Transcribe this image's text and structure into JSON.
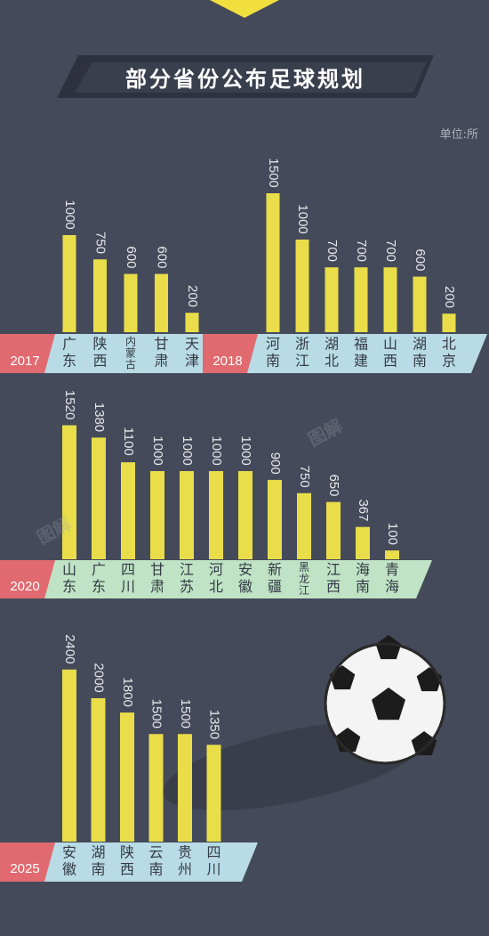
{
  "title": "部分省份公布足球规划",
  "unit": "单位:所",
  "colors": {
    "background": "#454a5a",
    "bar": "#e9de4a",
    "year_tag": "#e06a6f",
    "band_blue": "#b8dbe6",
    "band_green": "#bfe3c4"
  },
  "watermark": "图解",
  "chart_data": [
    {
      "type": "bar",
      "year": "2017",
      "categories": [
        "广东",
        "陕西",
        "内蒙古",
        "甘肃",
        "天津"
      ],
      "values": [
        1000,
        750,
        600,
        600,
        200
      ]
    },
    {
      "type": "bar",
      "year": "2018",
      "categories": [
        "河南",
        "浙江",
        "湖北",
        "福建",
        "山西",
        "湖南",
        "北京"
      ],
      "values": [
        1500,
        1000,
        700,
        700,
        700,
        600,
        200
      ]
    },
    {
      "type": "bar",
      "year": "2020",
      "categories": [
        "山东",
        "广东",
        "四川",
        "甘肃",
        "江苏",
        "河北",
        "安徽",
        "新疆",
        "黑龙江",
        "江西",
        "海南",
        "青海"
      ],
      "values": [
        1520,
        1380,
        1100,
        1000,
        1000,
        1000,
        1000,
        900,
        750,
        650,
        367,
        100
      ]
    },
    {
      "type": "bar",
      "year": "2025",
      "categories": [
        "安徽",
        "湖南",
        "陕西",
        "云南",
        "贵州",
        "四川"
      ],
      "values": [
        2400,
        2000,
        1800,
        1500,
        1500,
        1350
      ]
    }
  ]
}
